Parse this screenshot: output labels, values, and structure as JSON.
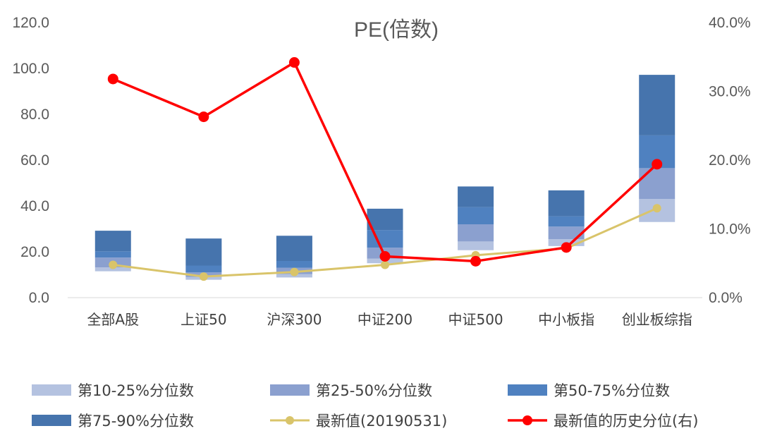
{
  "chart_data": {
    "type": "bar",
    "title": "PE(倍数)",
    "categories": [
      "全部A股",
      "上证50",
      "沪深300",
      "中证200",
      "中证500",
      "中小板指",
      "创业板综指"
    ],
    "y_ticks": [
      "0.0",
      "20.0",
      "40.0",
      "60.0",
      "80.0",
      "100.0",
      "120.0"
    ],
    "y2_ticks": [
      "0.0%",
      "10.0%",
      "20.0%",
      "30.0%",
      "40.0%"
    ],
    "ylim": [
      0,
      120
    ],
    "y2lim": [
      0,
      40
    ],
    "percentiles": {
      "p10": [
        11.5,
        7.8,
        8.8,
        15.0,
        20.7,
        22.5,
        33.0
      ],
      "p25": [
        13.2,
        9.0,
        10.3,
        17.0,
        24.5,
        25.5,
        43.0
      ],
      "p50": [
        17.5,
        11.0,
        13.0,
        21.8,
        32.0,
        31.0,
        56.5
      ],
      "p75": [
        20.2,
        14.0,
        16.0,
        29.5,
        39.5,
        35.5,
        70.8
      ],
      "p90": [
        29.2,
        25.8,
        27.0,
        38.8,
        48.5,
        46.8,
        97.2
      ]
    },
    "series": [
      {
        "name": "第10-25%分位数",
        "kind": "band",
        "color": "#b4c2e0"
      },
      {
        "name": "第25-50%分位数",
        "kind": "band",
        "color": "#8ba0cf"
      },
      {
        "name": "第50-75%分位数",
        "kind": "band",
        "color": "#4f81c0"
      },
      {
        "name": "第75-90%分位数",
        "kind": "band",
        "color": "#4674ad"
      },
      {
        "name": "最新值(20190531)",
        "kind": "line",
        "axis": "left",
        "color": "#d9c46a",
        "values": [
          14.3,
          9.2,
          11.2,
          14.3,
          18.5,
          21.5,
          39.0
        ]
      },
      {
        "name": "最新值的历史分位(右)",
        "kind": "line",
        "axis": "right",
        "color": "#ff0000",
        "values": [
          31.8,
          26.3,
          34.2,
          6.0,
          5.3,
          7.3,
          19.4
        ]
      }
    ],
    "legend_position": "bottom",
    "grid": false
  }
}
